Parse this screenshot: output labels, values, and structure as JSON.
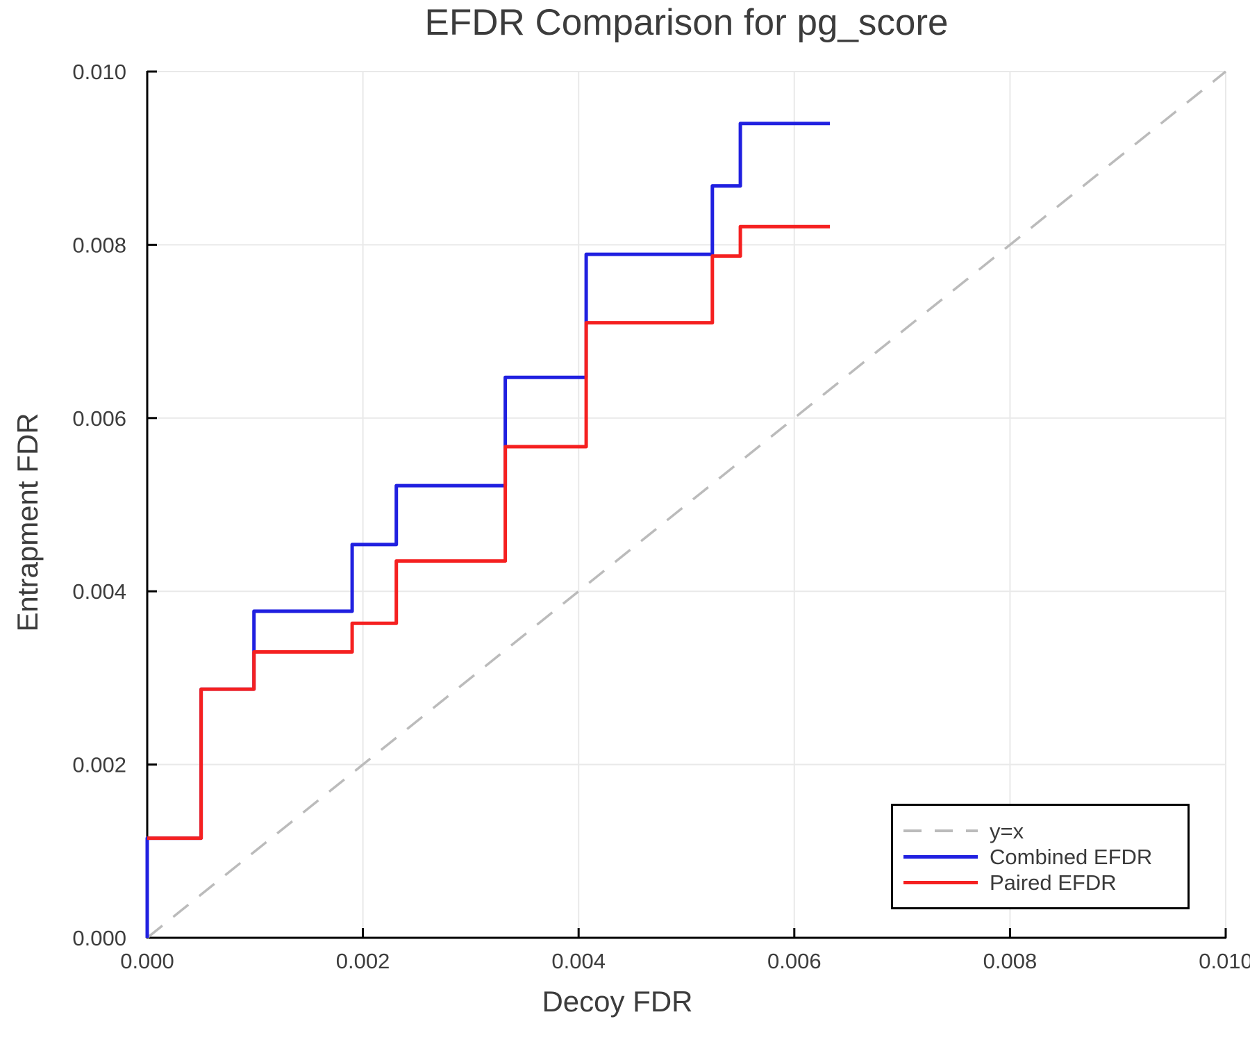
{
  "chart_data": {
    "type": "line",
    "title": "EFDR Comparison for pg_score",
    "xlabel": "Decoy FDR",
    "ylabel": "Entrapment FDR",
    "xlim": [
      0.0,
      0.01
    ],
    "ylim": [
      0.0,
      0.01
    ],
    "grid": true,
    "legend_position": "bottom-right",
    "xticks": {
      "values": [
        0.0,
        0.002,
        0.004,
        0.006,
        0.008,
        0.01
      ],
      "labels": [
        "0.000",
        "0.002",
        "0.004",
        "0.006",
        "0.008",
        "0.010"
      ]
    },
    "yticks": {
      "values": [
        0.0,
        0.002,
        0.004,
        0.006,
        0.008,
        0.01
      ],
      "labels": [
        "0.000",
        "0.002",
        "0.004",
        "0.006",
        "0.008",
        "0.010"
      ]
    },
    "series": [
      {
        "name": "y=x",
        "color": "#bbbbbb",
        "style": "dashed",
        "width": 3.5,
        "points": [
          [
            0.0,
            0.0
          ],
          [
            0.01,
            0.01
          ]
        ]
      },
      {
        "name": "Combined EFDR",
        "color": "#2020e0",
        "style": "solid",
        "width": 5,
        "points": [
          [
            0.0,
            0.0
          ],
          [
            0.0,
            0.00115
          ],
          [
            0.0005,
            0.00115
          ],
          [
            0.0005,
            0.00287
          ],
          [
            0.00099,
            0.00287
          ],
          [
            0.00099,
            0.00377
          ],
          [
            0.0019,
            0.00377
          ],
          [
            0.0019,
            0.00454
          ],
          [
            0.00231,
            0.00454
          ],
          [
            0.00231,
            0.00522
          ],
          [
            0.00332,
            0.00522
          ],
          [
            0.00332,
            0.00647
          ],
          [
            0.00407,
            0.00647
          ],
          [
            0.00407,
            0.00789
          ],
          [
            0.00524,
            0.00789
          ],
          [
            0.00524,
            0.00868
          ],
          [
            0.0055,
            0.00868
          ],
          [
            0.0055,
            0.0094
          ],
          [
            0.00633,
            0.0094
          ]
        ]
      },
      {
        "name": "Paired EFDR",
        "color": "#f52020",
        "style": "solid",
        "width": 5,
        "points": [
          [
            0.0,
            0.00115
          ],
          [
            0.0005,
            0.00115
          ],
          [
            0.0005,
            0.00287
          ],
          [
            0.00099,
            0.00287
          ],
          [
            0.00099,
            0.0033
          ],
          [
            0.0019,
            0.0033
          ],
          [
            0.0019,
            0.00363
          ],
          [
            0.00231,
            0.00363
          ],
          [
            0.00231,
            0.00435
          ],
          [
            0.00332,
            0.00435
          ],
          [
            0.00332,
            0.00567
          ],
          [
            0.00407,
            0.00567
          ],
          [
            0.00407,
            0.0071
          ],
          [
            0.00524,
            0.0071
          ],
          [
            0.00524,
            0.00787
          ],
          [
            0.0055,
            0.00787
          ],
          [
            0.0055,
            0.00821
          ],
          [
            0.00633,
            0.00821
          ]
        ]
      }
    ]
  }
}
